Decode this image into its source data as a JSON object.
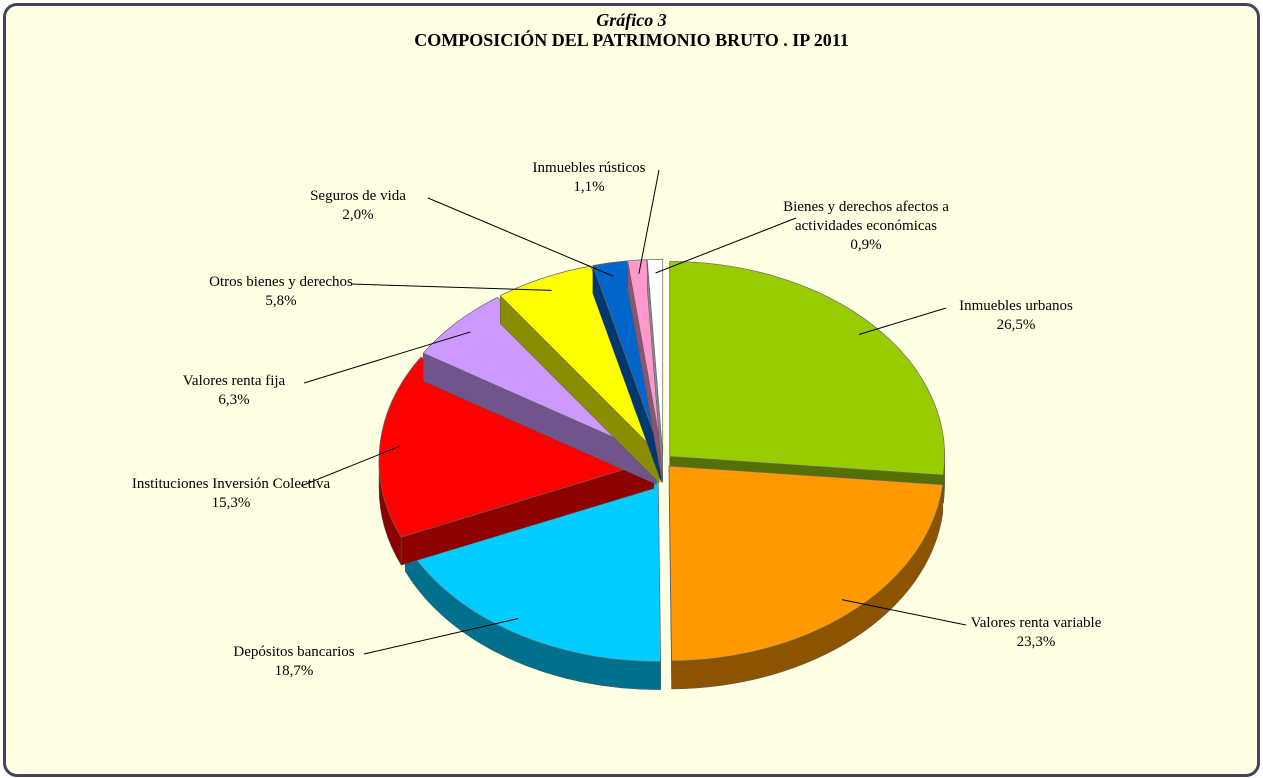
{
  "chart_data": {
    "type": "pie",
    "subtitle": "Gráfico 3",
    "title": "COMPOSICIÓN DEL PATRIMONIO BRUTO . IP 2011",
    "categories": [
      "Inmuebles urbanos",
      "Valores renta variable",
      "Depósitos bancarios",
      "Instituciones Inversión Colectiva",
      "Valores renta fija",
      "Otros bienes y derechos",
      "Seguros de vida",
      "Inmuebles rústicos",
      "Bienes y derechos afectos a actividades económicas"
    ],
    "values": [
      26.5,
      23.3,
      18.7,
      15.3,
      6.3,
      5.8,
      2.0,
      1.1,
      0.9
    ],
    "value_labels": [
      "26,5%",
      "23,3%",
      "18,7%",
      "15,3%",
      "6,3%",
      "5,8%",
      "2,0%",
      "1,1%",
      "0,9%"
    ],
    "colors": [
      "#99cc00",
      "#ff9900",
      "#00ccff",
      "#ff0000",
      "#cc99ff",
      "#ffff00",
      "#0066cc",
      "#ff99cc",
      "#ffffff"
    ]
  }
}
